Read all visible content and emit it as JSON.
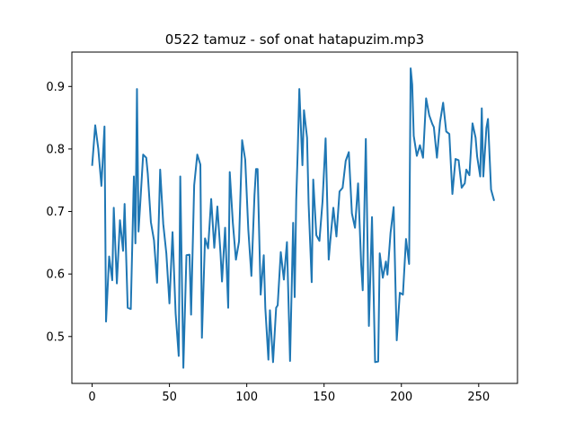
{
  "chart_data": {
    "type": "line",
    "title": "0522 tamuz - sof onat hatapuzim.mp3",
    "xlabel": "",
    "ylabel": "",
    "xlim": [
      -13.1,
      275.1
    ],
    "ylim": [
      0.425,
      0.955
    ],
    "xticks": [
      0,
      50,
      100,
      150,
      200,
      250
    ],
    "xtick_labels": [
      "0",
      "50",
      "100",
      "150",
      "200",
      "250"
    ],
    "yticks": [
      0.5,
      0.6,
      0.7,
      0.8,
      0.9
    ],
    "ytick_labels": [
      "0.5",
      "0.6",
      "0.7",
      "0.8",
      "0.9"
    ],
    "grid": false,
    "line_color": "#1f77b4",
    "series": [
      {
        "x": [
          0,
          2,
          4,
          6,
          8,
          9,
          11,
          13,
          14,
          16,
          18,
          20,
          21,
          23,
          25,
          27,
          28,
          29,
          30,
          31,
          33,
          35,
          36,
          38,
          40,
          42,
          44,
          46,
          48,
          50,
          52,
          54,
          56,
          57,
          58,
          59,
          61,
          63,
          64,
          66,
          68,
          70,
          71,
          73,
          75,
          77,
          79,
          81,
          83,
          84,
          86,
          88,
          89,
          91,
          93,
          95,
          97,
          99,
          101,
          103,
          105,
          106,
          107,
          109,
          111,
          112,
          114,
          115,
          117,
          119,
          120,
          122,
          124,
          126,
          128,
          130,
          131,
          132,
          133,
          134,
          136,
          137,
          139,
          140,
          142,
          143,
          145,
          147,
          149,
          151,
          153,
          154,
          156,
          158,
          160,
          162,
          164,
          166,
          168,
          170,
          172,
          174,
          175,
          177,
          179,
          181,
          183,
          185,
          186,
          188,
          190,
          191,
          193,
          195,
          197,
          199,
          201,
          203,
          205,
          206,
          207,
          208,
          210,
          212,
          214,
          216,
          218,
          220,
          221,
          223,
          225,
          227,
          229,
          231,
          233,
          235,
          237,
          239,
          241,
          242,
          244,
          246,
          248,
          249,
          251,
          252,
          253,
          255,
          256,
          258,
          260
        ],
        "y": [
          0.773,
          0.838,
          0.8,
          0.741,
          0.836,
          0.524,
          0.628,
          0.59,
          0.706,
          0.585,
          0.686,
          0.637,
          0.712,
          0.546,
          0.544,
          0.756,
          0.649,
          0.896,
          0.668,
          0.708,
          0.791,
          0.786,
          0.76,
          0.683,
          0.654,
          0.586,
          0.767,
          0.68,
          0.633,
          0.553,
          0.667,
          0.537,
          0.469,
          0.756,
          0.601,
          0.45,
          0.63,
          0.631,
          0.535,
          0.742,
          0.791,
          0.775,
          0.498,
          0.657,
          0.641,
          0.72,
          0.642,
          0.708,
          0.634,
          0.588,
          0.674,
          0.546,
          0.763,
          0.682,
          0.623,
          0.652,
          0.814,
          0.783,
          0.671,
          0.597,
          0.726,
          0.768,
          0.768,
          0.567,
          0.63,
          0.546,
          0.463,
          0.542,
          0.459,
          0.546,
          0.55,
          0.635,
          0.591,
          0.651,
          0.461,
          0.682,
          0.563,
          0.719,
          0.799,
          0.896,
          0.774,
          0.862,
          0.818,
          0.713,
          0.587,
          0.751,
          0.662,
          0.653,
          0.716,
          0.817,
          0.623,
          0.652,
          0.706,
          0.66,
          0.732,
          0.738,
          0.781,
          0.795,
          0.697,
          0.674,
          0.745,
          0.615,
          0.574,
          0.816,
          0.517,
          0.691,
          0.459,
          0.46,
          0.633,
          0.594,
          0.62,
          0.599,
          0.666,
          0.707,
          0.494,
          0.57,
          0.567,
          0.656,
          0.616,
          0.929,
          0.903,
          0.821,
          0.789,
          0.806,
          0.786,
          0.881,
          0.854,
          0.84,
          0.835,
          0.786,
          0.843,
          0.874,
          0.828,
          0.824,
          0.728,
          0.784,
          0.782,
          0.738,
          0.745,
          0.767,
          0.758,
          0.841,
          0.818,
          0.788,
          0.756,
          0.865,
          0.756,
          0.834,
          0.848,
          0.735,
          0.717
        ]
      }
    ]
  }
}
